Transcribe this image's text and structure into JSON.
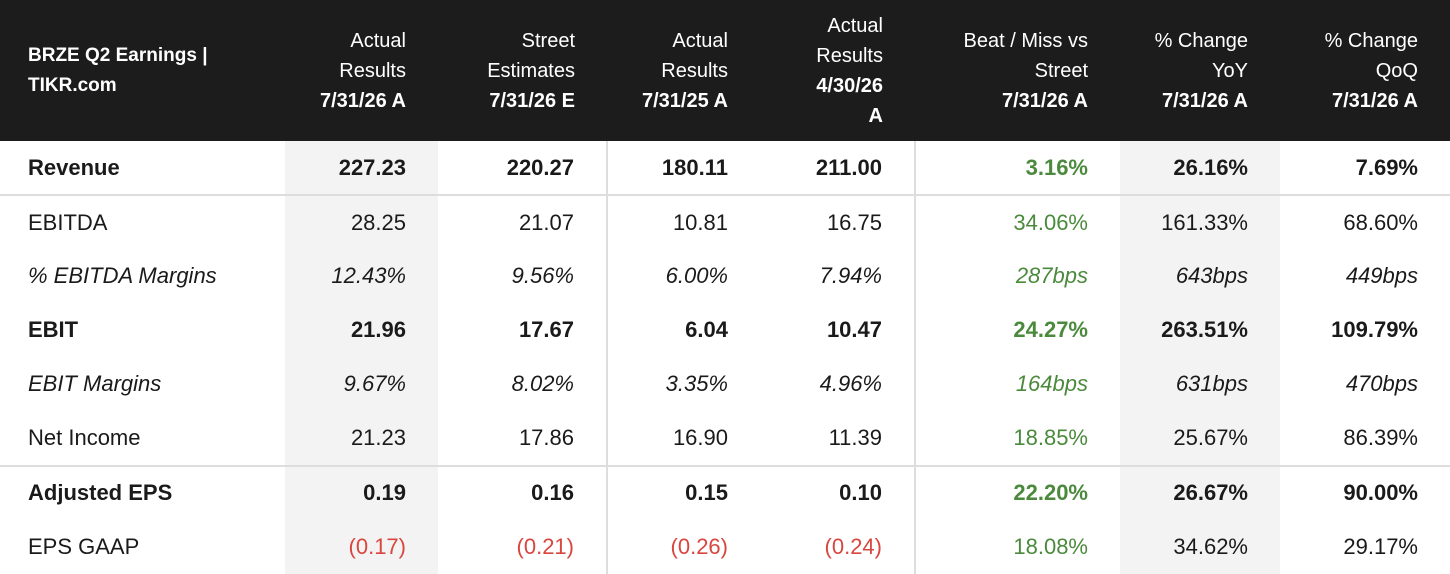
{
  "header": {
    "title": [
      "BRZE Q2 Earnings |",
      "TIKR.com"
    ],
    "columns": [
      [
        "Actual",
        "Results",
        "7/31/26 A"
      ],
      [
        "Street",
        "Estimates",
        "7/31/26 E"
      ],
      [
        "Actual",
        "Results",
        "7/31/25 A"
      ],
      [
        "Actual",
        "Results",
        "4/30/26",
        "A"
      ],
      [
        "Beat / Miss vs",
        "Street",
        "7/31/26 A"
      ],
      [
        "% Change",
        "YoY",
        "7/31/26 A"
      ],
      [
        "% Change",
        "QoQ",
        "7/31/26 A"
      ]
    ]
  },
  "table": {
    "rows": [
      [
        "Revenue",
        "227.23",
        "220.27",
        "180.11",
        "211.00",
        "3.16%",
        "26.16%",
        "7.69%"
      ],
      [
        "EBITDA",
        "28.25",
        "21.07",
        "10.81",
        "16.75",
        "34.06%",
        "161.33%",
        "68.60%"
      ],
      [
        "% EBITDA Margins",
        "12.43%",
        "9.56%",
        "6.00%",
        "7.94%",
        "287bps",
        "643bps",
        "449bps"
      ],
      [
        "EBIT",
        "21.96",
        "17.67",
        "6.04",
        "10.47",
        "24.27%",
        "263.51%",
        "109.79%"
      ],
      [
        "EBIT Margins",
        "9.67%",
        "8.02%",
        "3.35%",
        "4.96%",
        "164bps",
        "631bps",
        "470bps"
      ],
      [
        "Net Income",
        "21.23",
        "17.86",
        "16.90",
        "11.39",
        "18.85%",
        "25.67%",
        "86.39%"
      ],
      [
        "Adjusted EPS",
        "0.19",
        "0.16",
        "0.15",
        "0.10",
        "22.20%",
        "26.67%",
        "90.00%"
      ],
      [
        "EPS GAAP",
        "(0.17)",
        "(0.21)",
        "(0.26)",
        "(0.24)",
        "18.08%",
        "34.62%",
        "29.17%"
      ]
    ]
  }
}
